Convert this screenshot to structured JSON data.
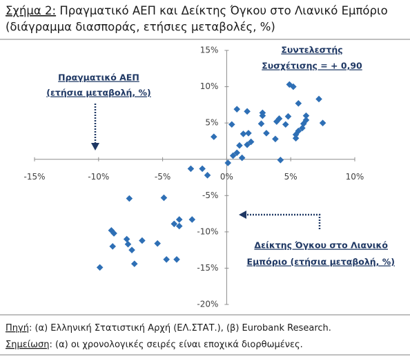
{
  "chart_data": {
    "type": "scatter",
    "figure_label": "Σχήμα 2:",
    "title": "Πραγματικό ΑΕΠ και Δείκτης Όγκου στο Λιανικό Εμπόριο",
    "subtitle": "(διάγραμμα διασποράς, ετήσιες μεταβολές, %)",
    "color": "#2e6fb5",
    "x": [
      4.9,
      5.2,
      7.2,
      5.6,
      0.8,
      1.6,
      2.8,
      2.8,
      6.2,
      4.8,
      4.1,
      3.9,
      2.7,
      6.2,
      6.0,
      7.5,
      4.6,
      0.4,
      5.9,
      1.7,
      1.3,
      3.1,
      5.6,
      5.4,
      3.8,
      5.4,
      -1.0,
      1.6,
      1.0,
      1.9,
      0.8,
      0.5,
      1.2,
      4.2,
      0.1,
      -2.8,
      -1.9,
      -1.5,
      -7.6,
      -4.9,
      -2.7,
      -3.7,
      -4.1,
      -3.7,
      -9.0,
      -8.8,
      -7.8,
      -6.6,
      -5.4,
      -8.9,
      -7.7,
      -7.4,
      -4.7,
      -3.9,
      -7.2,
      -9.9
    ],
    "values": [
      10.3,
      10.0,
      8.3,
      7.7,
      6.9,
      6.6,
      6.4,
      6.0,
      6.0,
      5.9,
      5.6,
      5.2,
      4.9,
      5.4,
      4.9,
      5.0,
      4.8,
      4.8,
      4.3,
      3.6,
      3.5,
      3.6,
      3.9,
      3.4,
      2.8,
      2.9,
      3.1,
      2.0,
      1.9,
      2.4,
      0.9,
      0.5,
      0.2,
      -0.1,
      -0.5,
      -1.3,
      -1.3,
      -2.2,
      -5.4,
      -5.3,
      -8.3,
      -8.3,
      -8.9,
      -9.2,
      -9.8,
      -10.2,
      -11.0,
      -11.2,
      -11.6,
      -12.0,
      -11.7,
      -12.5,
      -13.8,
      -13.8,
      -14.4,
      -14.9
    ],
    "xlim": [
      -15,
      10
    ],
    "ylim": [
      -20,
      15
    ],
    "xticks": [
      {
        "value": -15,
        "label": "-15%"
      },
      {
        "value": -10,
        "label": "-10%"
      },
      {
        "value": -5,
        "label": "-5%"
      },
      {
        "value": 0,
        "label": "0%"
      },
      {
        "value": 5,
        "label": "5%"
      },
      {
        "value": 10,
        "label": "10%"
      }
    ],
    "yticks": [
      {
        "value": 15,
        "label": "15%"
      },
      {
        "value": 10,
        "label": "10%"
      },
      {
        "value": 5,
        "label": "5%"
      },
      {
        "value": -5,
        "label": "-5%"
      },
      {
        "value": -10,
        "label": "-10%"
      },
      {
        "value": -15,
        "label": "-15%"
      },
      {
        "value": -20,
        "label": "-20%"
      }
    ],
    "annotations": [
      {
        "lines": [
          "Συντελεστής",
          "Συσχέτισης =  + 0,90"
        ]
      },
      {
        "lines": [
          "Πραγματικό ΑΕΠ",
          "(ετήσια μεταβολή, %)"
        ]
      },
      {
        "lines": [
          "Δείκτης Όγκου στο Λιανικό",
          "Εμπόριο (ετήσια μεταβολή, %)"
        ]
      }
    ],
    "notes": [
      {
        "label": "Πηγή",
        "text": ": (α) Ελληνική Στατιστική Αρχή (ΕΛ.ΣΤΑΤ.), (β) Eurobank Research."
      },
      {
        "label": "Σημείωση",
        "text": ": (α) οι χρονολογικές σειρές είναι εποχικά διορθωμένες."
      }
    ]
  }
}
